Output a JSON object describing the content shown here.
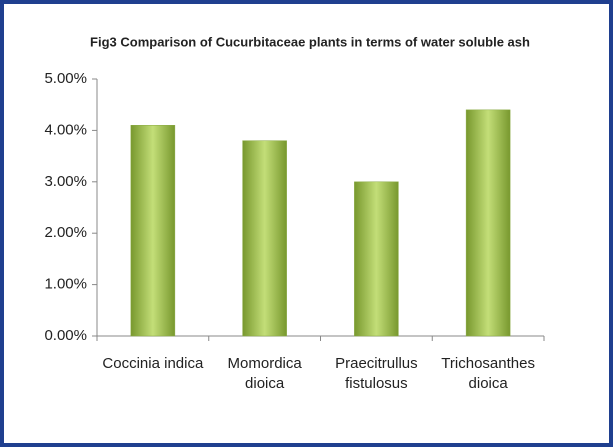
{
  "chart_data": {
    "type": "bar",
    "title": "Fig3 Comparison of Cucurbitaceae plants in terms of water soluble ash",
    "categories": [
      "Coccinia indica",
      "Momordica dioica",
      "Praecitrullus fistulosus",
      "Trichosanthes dioica"
    ],
    "values": [
      4.1,
      3.8,
      3.0,
      4.4
    ],
    "color": "#9bbb59",
    "ylim": [
      0,
      5
    ],
    "yticks": [
      {
        "value": 0,
        "label": "0.00%"
      },
      {
        "value": 1,
        "label": "1.00%"
      },
      {
        "value": 2,
        "label": "2.00%"
      },
      {
        "value": 3,
        "label": "3.00%"
      },
      {
        "value": 4,
        "label": "4.00%"
      },
      {
        "value": 5,
        "label": "5.00%"
      }
    ],
    "grid": false
  }
}
